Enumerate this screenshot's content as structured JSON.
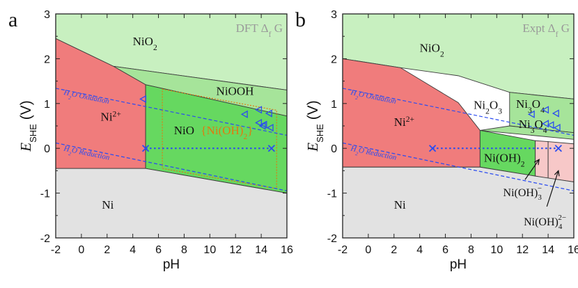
{
  "colors": {
    "green_light": "#c8f0c0",
    "green_mid": "#a6e49a",
    "green_dark": "#70d464",
    "green_bright": "#66d860",
    "red": "#f07c7c",
    "pink": "#f7c8c8",
    "gray": "#e2e2e2",
    "blue": "#2b4cf0",
    "orange": "#e07a10",
    "label_gray": "#999999"
  },
  "chart_data": [
    {
      "type": "area",
      "panel_label": "a",
      "annotation": "DFT Δ_f G",
      "xlabel": "pH",
      "ylabel": "E_SHE (V)",
      "xlim": [
        -2,
        16
      ],
      "ylim": [
        -2,
        3
      ],
      "xticks": [
        "-2",
        "0",
        "2",
        "4",
        "6",
        "8",
        "10",
        "12",
        "14",
        "16"
      ],
      "yticks": [
        "-2",
        "-1",
        "0",
        "1",
        "2",
        "3"
      ],
      "regions": [
        {
          "label": "NiO2",
          "label_text": "NiO",
          "label_sub": "2",
          "color": "green_light",
          "polygon": [
            [
              -2,
              3
            ],
            [
              16,
              3
            ],
            [
              16,
              1.3
            ],
            [
              2.5,
              1.83
            ],
            [
              -2,
              2.45
            ]
          ],
          "label_at": [
            4.0,
            2.3
          ]
        },
        {
          "label": "NiOOH",
          "label_text": "NiOOH",
          "label_sub": "",
          "color": "green_mid",
          "polygon": [
            [
              2.5,
              1.83
            ],
            [
              16,
              1.3
            ],
            [
              16,
              0.72
            ],
            [
              5,
              1.42
            ]
          ],
          "label_at": [
            10.5,
            1.19
          ]
        },
        {
          "label": "Ni2+",
          "label_text": "Ni",
          "label_sup": "2+",
          "color": "red",
          "polygon": [
            [
              -2,
              2.45
            ],
            [
              2.5,
              1.83
            ],
            [
              5,
              1.42
            ],
            [
              5,
              -0.45
            ],
            [
              -2,
              -0.45
            ]
          ],
          "label_at": [
            1.5,
            0.62
          ]
        },
        {
          "label": "NiO",
          "label_text": "NiO",
          "label_sub": "",
          "color": "green_bright",
          "polygon": [
            [
              5,
              1.42
            ],
            [
              16,
              0.72
            ],
            [
              16,
              -1.0
            ],
            [
              5,
              -0.45
            ]
          ],
          "label_at": [
            7.2,
            0.31
          ]
        },
        {
          "label": "Ni",
          "label_text": "Ni",
          "label_sub": "",
          "color": "gray",
          "polygon": [
            [
              -2,
              -0.45
            ],
            [
              5,
              -0.45
            ],
            [
              16,
              -1.0
            ],
            [
              16,
              -2
            ],
            [
              -2,
              -2
            ]
          ],
          "label_at": [
            1.6,
            -1.35
          ]
        }
      ],
      "extra_labels": [
        {
          "text": "{Ni(OH)",
          "sub": "2",
          "suffix": "}",
          "color": "orange",
          "at": [
            9.3,
            0.31
          ]
        }
      ],
      "dotted_box": [
        [
          6.3,
          1.32
        ],
        [
          15.2,
          0.85
        ],
        [
          15.2,
          -0.9
        ],
        [
          6.3,
          -0.45
        ]
      ],
      "water_lines": [
        {
          "name": "H2O Oxidation",
          "name_main": "H",
          "name_sub": "2",
          "name_rest": "O Oxidation",
          "x": [
            -2,
            16
          ],
          "y": [
            1.34,
            0.29
          ],
          "label_at": [
            -1.4,
            1.2
          ]
        },
        {
          "name": "H2O Reduction",
          "name_main": "H",
          "name_sub": "2",
          "name_rest": "O Reduction",
          "x": [
            -2,
            16
          ],
          "y": [
            0.12,
            -0.95
          ],
          "label_at": [
            -1.4,
            -0.05
          ]
        }
      ],
      "zero_line": {
        "y": 0,
        "x": [
          5,
          14.8
        ]
      },
      "crosses": [
        [
          5,
          0
        ],
        [
          14.8,
          0
        ]
      ],
      "triangles": [
        [
          4.8,
          1.1
        ],
        [
          12.7,
          0.76
        ],
        [
          13.8,
          0.86
        ],
        [
          14.6,
          0.78
        ],
        [
          13.8,
          0.57
        ],
        [
          14.2,
          0.53
        ],
        [
          14.7,
          0.46
        ],
        [
          14.1,
          0.5
        ]
      ]
    },
    {
      "type": "area",
      "panel_label": "b",
      "annotation": "Expt Δ_f G",
      "xlabel": "pH",
      "ylabel": "E_SHE (V)",
      "xlim": [
        -2,
        16
      ],
      "ylim": [
        -2,
        3
      ],
      "xticks": [
        "-2",
        "0",
        "2",
        "4",
        "6",
        "8",
        "10",
        "12",
        "14",
        "16"
      ],
      "yticks": [
        "-2",
        "-1",
        "0",
        "1",
        "2",
        "3"
      ],
      "regions": [
        {
          "label": "NiO2",
          "label_text": "NiO",
          "label_sub": "2",
          "color": "green_light",
          "polygon": [
            [
              -2,
              3
            ],
            [
              16,
              3
            ],
            [
              16,
              1.1
            ],
            [
              11,
              1.25
            ],
            [
              7,
              1.62
            ],
            [
              2.5,
              1.8
            ],
            [
              -2,
              2.0
            ]
          ],
          "label_at": [
            4.0,
            2.15
          ]
        },
        {
          "label": "Ni3O4",
          "label_text": "Ni",
          "label_sub": "3",
          "label_rest": "O",
          "label_sub2": "4",
          "color": "green_mid",
          "polygon": [
            [
              11,
              1.25
            ],
            [
              16,
              1.1
            ],
            [
              16,
              0.35
            ],
            [
              11,
              0.5
            ]
          ],
          "label_at": [
            11.5,
            0.9
          ]
        },
        {
          "label": "Ni3O4",
          "label_text": "Ni",
          "label_sub": "3",
          "label_rest": "O",
          "label_sub2": "4",
          "color": "green_mid",
          "polygon": [
            [
              8.7,
              0.4
            ],
            [
              16,
              0.2
            ],
            [
              16,
              0.35
            ],
            [
              11,
              0.5
            ]
          ],
          "label_at": [
            11.7,
            0.45
          ]
        },
        {
          "label": "Ni2+",
          "label_text": "Ni",
          "label_sup": "2+",
          "color": "red",
          "polygon": [
            [
              -2,
              2.0
            ],
            [
              2.5,
              1.8
            ],
            [
              7,
              1.02
            ],
            [
              8.7,
              0.4
            ],
            [
              8.7,
              -0.42
            ],
            [
              -2,
              -0.42
            ]
          ],
          "label_at": [
            2.0,
            0.5
          ]
        },
        {
          "label": "Ni(OH)2",
          "label_text": "Ni(OH)",
          "label_sub": "2",
          "color": "green_bright",
          "polygon": [
            [
              8.7,
              0.4
            ],
            [
              13,
              0.17
            ],
            [
              13,
              -0.62
            ],
            [
              8.7,
              -0.42
            ]
          ],
          "label_at": [
            9.0,
            -0.3
          ]
        },
        {
          "label": "Ni(OH)3-",
          "label_text": "",
          "label_sub": "",
          "color": "pink",
          "polygon": [
            [
              13,
              0.17
            ],
            [
              14,
              0.15
            ],
            [
              14,
              -0.67
            ],
            [
              13,
              -0.62
            ]
          ],
          "label_at": [
            0,
            0
          ]
        },
        {
          "label": "Ni(OH)4 2-",
          "label_text": "",
          "label_sub": "",
          "color": "pink",
          "polygon": [
            [
              14,
              0.15
            ],
            [
              16,
              0.1
            ],
            [
              16,
              -0.75
            ],
            [
              14,
              -0.67
            ]
          ],
          "label_at": [
            0,
            0
          ]
        },
        {
          "label": "Ni",
          "label_text": "Ni",
          "label_sub": "",
          "color": "gray",
          "polygon": [
            [
              -2,
              -0.42
            ],
            [
              8.7,
              -0.42
            ],
            [
              13,
              -0.62
            ],
            [
              16,
              -0.75
            ],
            [
              16,
              -2
            ],
            [
              -2,
              -2
            ]
          ],
          "label_at": [
            2.0,
            -1.35
          ]
        }
      ],
      "region_labels_extra": [
        {
          "text": "Ni",
          "sub": "2",
          "rest": "O",
          "sub2": "3",
          "at": [
            8.2,
            0.88
          ]
        }
      ],
      "callouts": [
        {
          "text": "Ni(OH)",
          "sub": "3",
          "sup": "−",
          "at": [
            10.5,
            -1.07
          ],
          "arrow_from": [
            12.2,
            -0.7
          ],
          "arrow_to": [
            13.3,
            -0.25
          ]
        },
        {
          "text": "Ni(OH)",
          "sub": "4",
          "sup": "2−",
          "at": [
            12.1,
            -1.72
          ],
          "arrow_from": [
            13.9,
            -1.3
          ],
          "arrow_to": [
            14.8,
            -0.5
          ]
        }
      ],
      "water_lines": [
        {
          "name": "H2O Oxidation",
          "name_main": "H",
          "name_sub": "2",
          "name_rest": "O Oxidation",
          "x": [
            -2,
            16
          ],
          "y": [
            1.34,
            0.29
          ],
          "label_at": [
            -1.4,
            1.2
          ]
        },
        {
          "name": "H2O Reduction",
          "name_main": "H",
          "name_sub": "2",
          "name_rest": "O Reduction",
          "x": [
            -2,
            16
          ],
          "y": [
            0.12,
            -0.95
          ],
          "label_at": [
            -1.4,
            -0.05
          ]
        }
      ],
      "zero_line": {
        "y": 0,
        "x": [
          5,
          14.8
        ]
      },
      "crosses": [
        [
          5,
          0
        ],
        [
          14.8,
          0
        ]
      ],
      "triangles": [
        [
          12.7,
          0.76
        ],
        [
          13.8,
          0.86
        ],
        [
          14.6,
          0.78
        ],
        [
          13.8,
          0.55
        ],
        [
          14.2,
          0.52
        ],
        [
          14.7,
          0.46
        ]
      ]
    }
  ]
}
